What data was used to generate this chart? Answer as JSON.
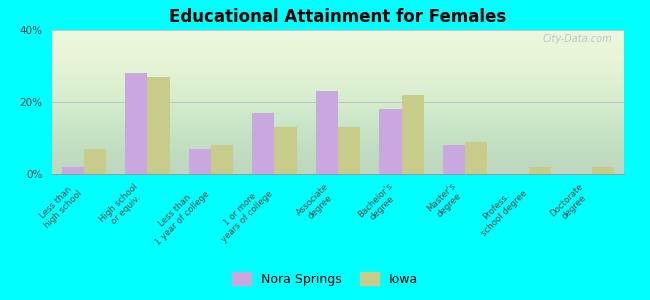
{
  "title": "Educational Attainment for Females",
  "categories": [
    "Less than\nhigh school",
    "High school\nor equiv.",
    "Less than\n1 year of college",
    "1 or more\nyears of college",
    "Associate\ndegree",
    "Bachelor's\ndegree",
    "Master's\ndegree",
    "Profess.\nschool degree",
    "Doctorate\ndegree"
  ],
  "nora_springs": [
    2,
    28,
    7,
    17,
    23,
    18,
    8,
    0,
    0
  ],
  "iowa": [
    7,
    27,
    8,
    13,
    13,
    22,
    9,
    2,
    2
  ],
  "nora_springs_color": "#c9a8e0",
  "iowa_color": "#c8cc8a",
  "background_color": "#00ffff",
  "ylim": [
    0,
    40
  ],
  "yticks": [
    0,
    20,
    40
  ],
  "ytick_labels": [
    "0%",
    "20%",
    "40%"
  ],
  "legend_labels": [
    "Nora Springs",
    "Iowa"
  ],
  "watermark": "City-Data.com",
  "bar_width": 0.35
}
